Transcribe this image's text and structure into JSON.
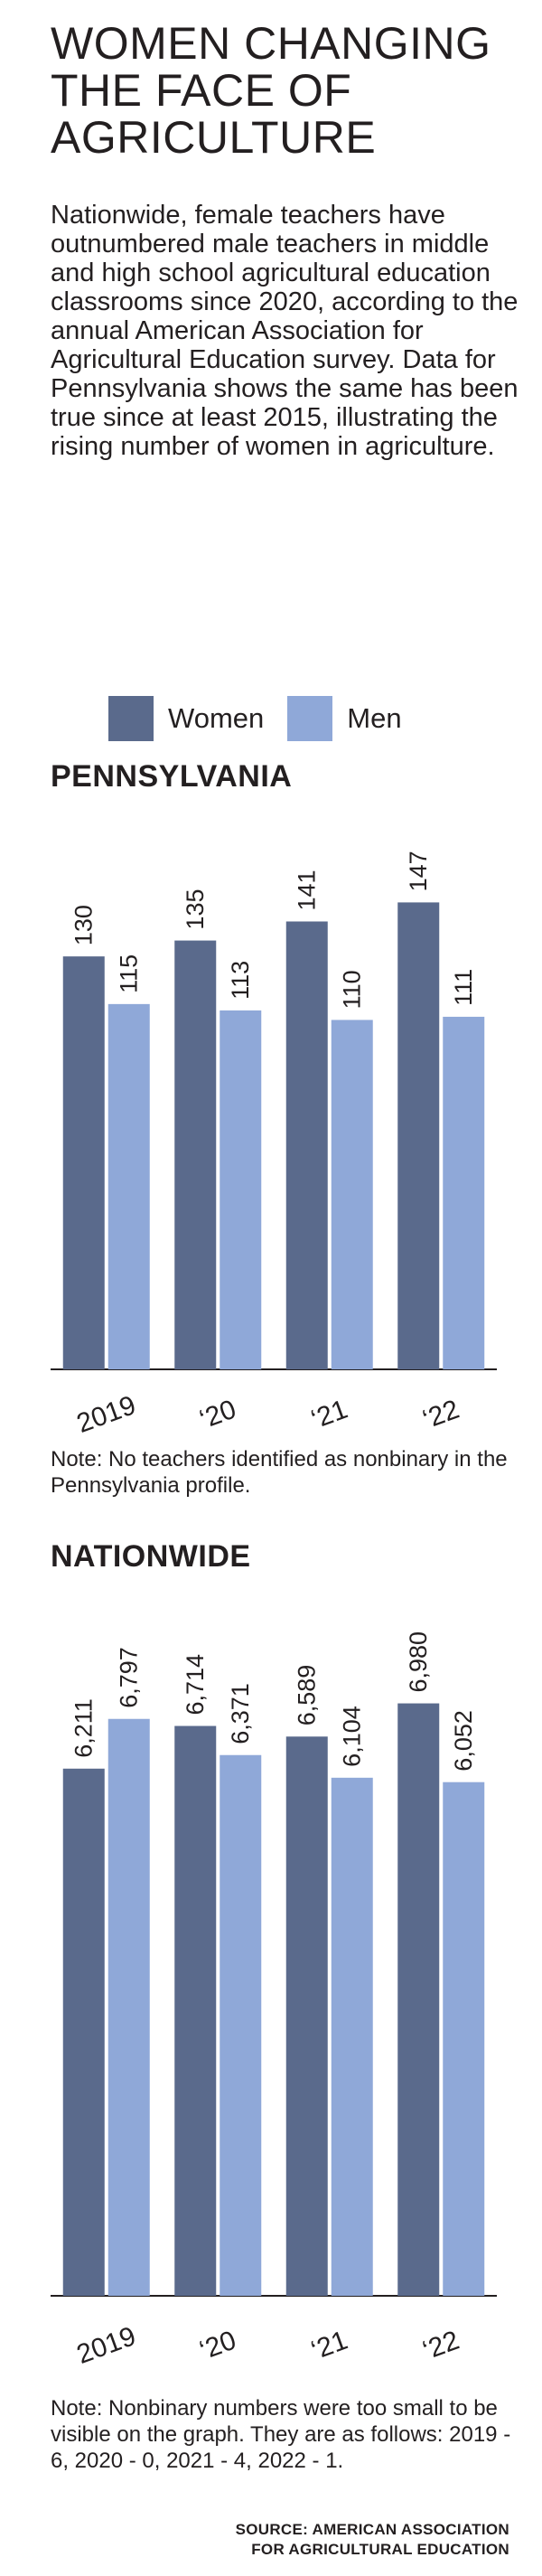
{
  "title": "WOMEN CHANGING THE FACE OF AGRICULTURE",
  "intro": "Nationwide, female teachers have outnumbered male teachers in middle and high school agricultural education classrooms since 2020, according to the annual American Association for Agricultural Education survey. Data for Pennsylvania shows the same has been true since at least 2015, illustrating the rising number of women in agriculture.",
  "legend": [
    {
      "label": "Women",
      "color": "#5a6a8c"
    },
    {
      "label": "Men",
      "color": "#8fa8d8"
    }
  ],
  "chart_data": [
    {
      "type": "bar",
      "title": "PENNSYLVANIA",
      "categories": [
        "2019",
        "‘20",
        "‘21",
        "‘22"
      ],
      "series": [
        {
          "name": "Women",
          "values": [
            130,
            135,
            141,
            147
          ],
          "labels": [
            "130",
            "135",
            "141",
            "147"
          ]
        },
        {
          "name": "Men",
          "values": [
            115,
            113,
            110,
            111
          ],
          "labels": [
            "115",
            "113",
            "110",
            "111"
          ]
        }
      ],
      "ylim": [
        0,
        175
      ],
      "xlabel": "",
      "ylabel": "",
      "grid": false,
      "legend": "top",
      "note": "Note: No teachers identified as nonbinary in the Pennsylvania profile."
    },
    {
      "type": "bar",
      "title": "NATIONWIDE",
      "categories": [
        "2019",
        "‘20",
        "‘21",
        "‘22"
      ],
      "series": [
        {
          "name": "Women",
          "values": [
            6211,
            6714,
            6589,
            6980
          ],
          "labels": [
            "6,211",
            "6,714",
            "6,589",
            "6,980"
          ]
        },
        {
          "name": "Men",
          "values": [
            6797,
            6371,
            6104,
            6052
          ],
          "labels": [
            "6,797",
            "6,371",
            "6,104",
            "6,052"
          ]
        }
      ],
      "ylim": [
        0,
        8200
      ],
      "xlabel": "",
      "ylabel": "",
      "grid": false,
      "legend": "top",
      "note": "Note: Nonbinary numbers were too small to be visible on the graph. They are as follows: 2019 - 6, 2020 - 0, 2021 - 4, 2022 - 1."
    }
  ],
  "source": "SOURCE: AMERICAN ASSOCIATION\nFOR AGRICULTURAL EDUCATION"
}
